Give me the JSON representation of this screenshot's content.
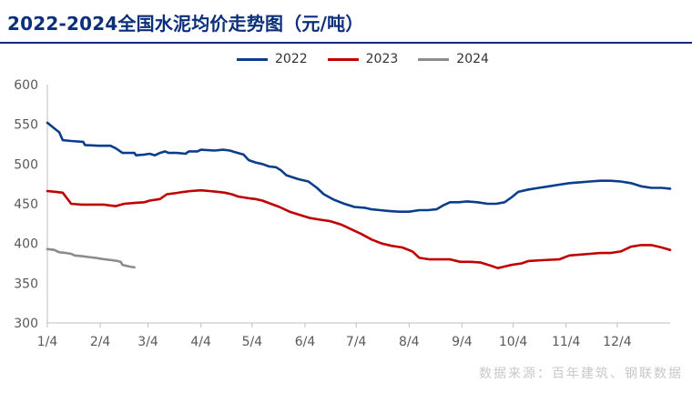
{
  "title": "2022-2024全国水泥均价走势图（元/吨）",
  "source": "数据来源：百年建筑、钢联数据",
  "colors": {
    "2022": "#0b3d8c",
    "2023": "#c00000",
    "2024": "#8c8c8c"
  },
  "chart_data": {
    "type": "line",
    "title": "2022-2024全国水泥均价走势图（元/吨）",
    "xlabel": "",
    "ylabel": "",
    "ylim": [
      300,
      600
    ],
    "yticks": [
      300,
      350,
      400,
      450,
      500,
      550,
      600
    ],
    "xlim": [
      0,
      365
    ],
    "x_ticks": [
      {
        "label": "1/4",
        "day": 0
      },
      {
        "label": "2/4",
        "day": 31
      },
      {
        "label": "3/4",
        "day": 59
      },
      {
        "label": "4/4",
        "day": 90
      },
      {
        "label": "5/4",
        "day": 120
      },
      {
        "label": "6/4",
        "day": 151
      },
      {
        "label": "7/4",
        "day": 181
      },
      {
        "label": "8/4",
        "day": 212
      },
      {
        "label": "9/4",
        "day": 243
      },
      {
        "label": "10/4",
        "day": 273
      },
      {
        "label": "11/4",
        "day": 304
      },
      {
        "label": "12/4",
        "day": 334
      }
    ],
    "grid": false,
    "legend": "top-center",
    "series": [
      {
        "name": "2022",
        "points": [
          [
            0,
            552
          ],
          [
            4,
            545
          ],
          [
            7,
            540
          ],
          [
            9,
            530
          ],
          [
            14,
            529
          ],
          [
            21,
            528
          ],
          [
            22,
            524
          ],
          [
            30,
            523
          ],
          [
            37,
            523
          ],
          [
            40,
            520
          ],
          [
            44,
            514
          ],
          [
            51,
            514
          ],
          [
            52,
            511
          ],
          [
            57,
            512
          ],
          [
            60,
            513
          ],
          [
            63,
            511
          ],
          [
            66,
            514
          ],
          [
            69,
            516
          ],
          [
            71,
            514
          ],
          [
            76,
            514
          ],
          [
            81,
            513
          ],
          [
            83,
            516
          ],
          [
            88,
            516
          ],
          [
            90,
            518
          ],
          [
            98,
            517
          ],
          [
            103,
            518
          ],
          [
            107,
            517
          ],
          [
            110,
            515
          ],
          [
            115,
            512
          ],
          [
            118,
            505
          ],
          [
            122,
            502
          ],
          [
            126,
            500
          ],
          [
            130,
            497
          ],
          [
            134,
            496
          ],
          [
            137,
            492
          ],
          [
            140,
            486
          ],
          [
            147,
            481
          ],
          [
            153,
            478
          ],
          [
            158,
            470
          ],
          [
            162,
            462
          ],
          [
            168,
            455
          ],
          [
            174,
            450
          ],
          [
            180,
            446
          ],
          [
            186,
            445
          ],
          [
            190,
            443
          ],
          [
            195,
            442
          ],
          [
            200,
            441
          ],
          [
            206,
            440
          ],
          [
            212,
            440
          ],
          [
            218,
            442
          ],
          [
            223,
            442
          ],
          [
            228,
            443
          ],
          [
            232,
            448
          ],
          [
            236,
            452
          ],
          [
            241,
            452
          ],
          [
            246,
            453
          ],
          [
            252,
            452
          ],
          [
            258,
            450
          ],
          [
            263,
            450
          ],
          [
            268,
            452
          ],
          [
            272,
            458
          ],
          [
            276,
            465
          ],
          [
            282,
            468
          ],
          [
            288,
            470
          ],
          [
            294,
            472
          ],
          [
            300,
            474
          ],
          [
            306,
            476
          ],
          [
            312,
            477
          ],
          [
            318,
            478
          ],
          [
            324,
            479
          ],
          [
            330,
            479
          ],
          [
            336,
            478
          ],
          [
            342,
            476
          ],
          [
            348,
            472
          ],
          [
            354,
            470
          ],
          [
            360,
            470
          ],
          [
            365,
            469
          ]
        ]
      },
      {
        "name": "2023",
        "points": [
          [
            0,
            466
          ],
          [
            5,
            465
          ],
          [
            9,
            464
          ],
          [
            14,
            450
          ],
          [
            20,
            449
          ],
          [
            26,
            449
          ],
          [
            33,
            449
          ],
          [
            36,
            448
          ],
          [
            40,
            447
          ],
          [
            45,
            450
          ],
          [
            51,
            451
          ],
          [
            57,
            452
          ],
          [
            60,
            454
          ],
          [
            66,
            456
          ],
          [
            70,
            462
          ],
          [
            74,
            463
          ],
          [
            80,
            465
          ],
          [
            84,
            466
          ],
          [
            90,
            467
          ],
          [
            95,
            466
          ],
          [
            100,
            465
          ],
          [
            104,
            464
          ],
          [
            108,
            462
          ],
          [
            112,
            459
          ],
          [
            118,
            457
          ],
          [
            122,
            456
          ],
          [
            126,
            454
          ],
          [
            131,
            450
          ],
          [
            136,
            446
          ],
          [
            142,
            440
          ],
          [
            148,
            436
          ],
          [
            154,
            432
          ],
          [
            160,
            430
          ],
          [
            166,
            428
          ],
          [
            172,
            424
          ],
          [
            178,
            418
          ],
          [
            184,
            412
          ],
          [
            190,
            405
          ],
          [
            196,
            400
          ],
          [
            202,
            397
          ],
          [
            208,
            395
          ],
          [
            214,
            390
          ],
          [
            218,
            382
          ],
          [
            224,
            380
          ],
          [
            230,
            380
          ],
          [
            236,
            380
          ],
          [
            242,
            377
          ],
          [
            248,
            377
          ],
          [
            254,
            376
          ],
          [
            260,
            372
          ],
          [
            264,
            369
          ],
          [
            268,
            371
          ],
          [
            272,
            373
          ],
          [
            278,
            375
          ],
          [
            282,
            378
          ],
          [
            290,
            379
          ],
          [
            300,
            380
          ],
          [
            306,
            385
          ],
          [
            312,
            386
          ],
          [
            318,
            387
          ],
          [
            324,
            388
          ],
          [
            330,
            388
          ],
          [
            336,
            390
          ],
          [
            342,
            396
          ],
          [
            348,
            398
          ],
          [
            354,
            398
          ],
          [
            360,
            395
          ],
          [
            365,
            392
          ]
        ]
      },
      {
        "name": "2024",
        "points": [
          [
            0,
            393
          ],
          [
            4,
            392
          ],
          [
            7,
            389
          ],
          [
            11,
            388
          ],
          [
            14,
            387
          ],
          [
            16,
            385
          ],
          [
            20,
            384
          ],
          [
            24,
            383
          ],
          [
            28,
            382
          ],
          [
            31,
            381
          ],
          [
            34,
            380
          ],
          [
            38,
            379
          ],
          [
            41,
            378
          ],
          [
            43,
            377
          ],
          [
            44,
            373
          ],
          [
            46,
            372
          ],
          [
            48,
            371
          ],
          [
            51,
            370
          ]
        ]
      }
    ]
  }
}
